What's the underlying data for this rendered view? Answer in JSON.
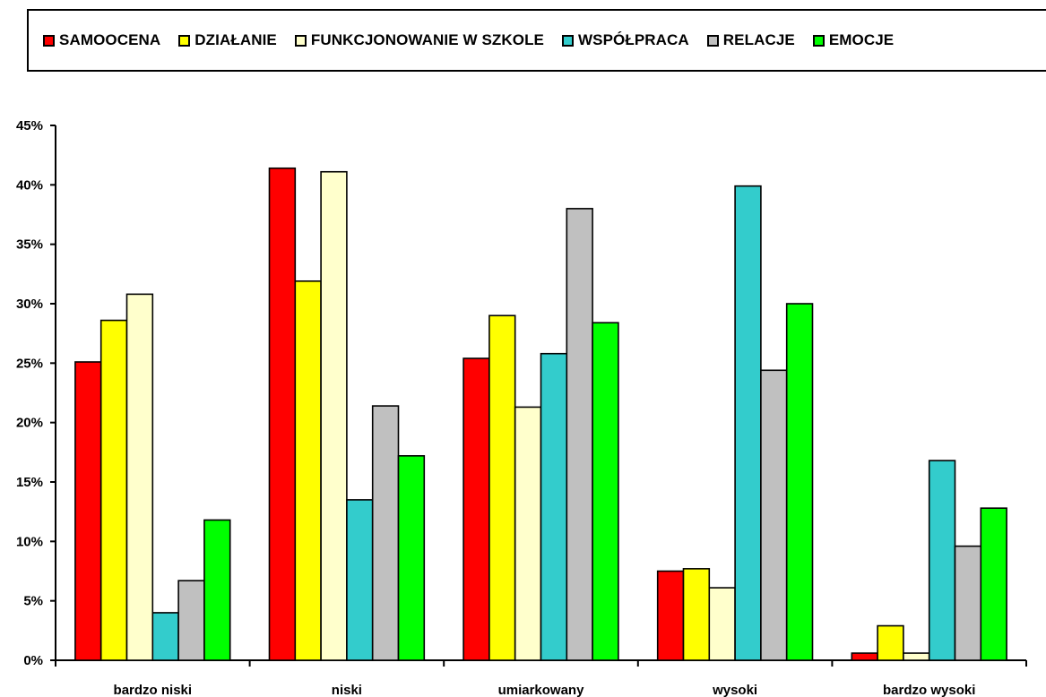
{
  "chart_data": {
    "type": "bar",
    "categories": [
      "bardzo niski",
      "niski",
      "umiarkowany",
      "wysoki",
      "bardzo wysoki"
    ],
    "ylim": [
      0,
      45
    ],
    "yticks": [
      "0%",
      "5%",
      "10%",
      "15%",
      "20%",
      "25%",
      "30%",
      "35%",
      "40%",
      "45%"
    ],
    "grid": false,
    "legend_position": "top",
    "series": [
      {
        "name": "SAMOOCENA",
        "color": "#ff0000",
        "values": [
          25.1,
          41.4,
          25.4,
          7.5,
          0.6
        ]
      },
      {
        "name": "DZIAŁANIE",
        "color": "#ffff00",
        "values": [
          28.6,
          31.9,
          29.0,
          7.7,
          2.9
        ]
      },
      {
        "name": "FUNKCJONOWANIE W SZKOLE",
        "color": "#ffffcc",
        "values": [
          30.8,
          41.1,
          21.3,
          6.1,
          0.6
        ]
      },
      {
        "name": "WSPÓŁPRACA",
        "color": "#33cccc",
        "values": [
          4.0,
          13.5,
          25.8,
          39.9,
          16.8
        ]
      },
      {
        "name": "RELACJE",
        "color": "#c0c0c0",
        "values": [
          6.7,
          21.4,
          38.0,
          24.4,
          9.6
        ]
      },
      {
        "name": "EMOCJE",
        "color": "#00ff00",
        "values": [
          11.8,
          17.2,
          28.4,
          30.0,
          12.8
        ]
      }
    ]
  }
}
